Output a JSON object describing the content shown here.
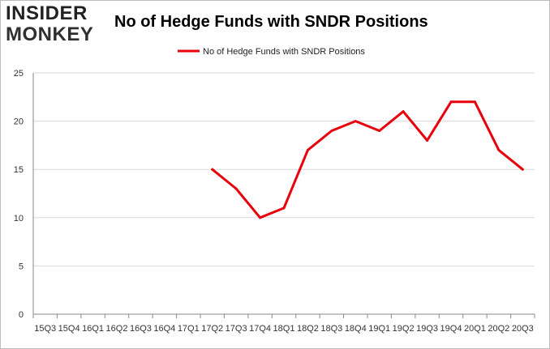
{
  "logo": {
    "line1": "INSIDER",
    "line2": "MONKEY"
  },
  "colors": {
    "series": "#e8000b",
    "grid": "#d9d9d9",
    "axis": "#888888"
  },
  "chart_data": {
    "type": "line",
    "title": "No of Hedge Funds with SNDR Positions",
    "xlabel": "",
    "ylabel": "",
    "ylim": [
      0,
      25
    ],
    "yticks": [
      0,
      5,
      10,
      15,
      20,
      25
    ],
    "grid": true,
    "legend_position": "top-center",
    "categories": [
      "15Q3",
      "15Q4",
      "16Q1",
      "16Q2",
      "16Q3",
      "16Q4",
      "17Q1",
      "17Q2",
      "17Q3",
      "17Q4",
      "18Q1",
      "18Q2",
      "18Q3",
      "18Q4",
      "19Q1",
      "19Q2",
      "19Q3",
      "19Q4",
      "20Q1",
      "20Q2",
      "20Q3"
    ],
    "series": [
      {
        "name": "No of Hedge Funds with SNDR Positions",
        "values": [
          null,
          null,
          null,
          null,
          null,
          null,
          null,
          15,
          13,
          10,
          11,
          17,
          19,
          20,
          19,
          21,
          18,
          22,
          22,
          17,
          15
        ]
      }
    ]
  }
}
